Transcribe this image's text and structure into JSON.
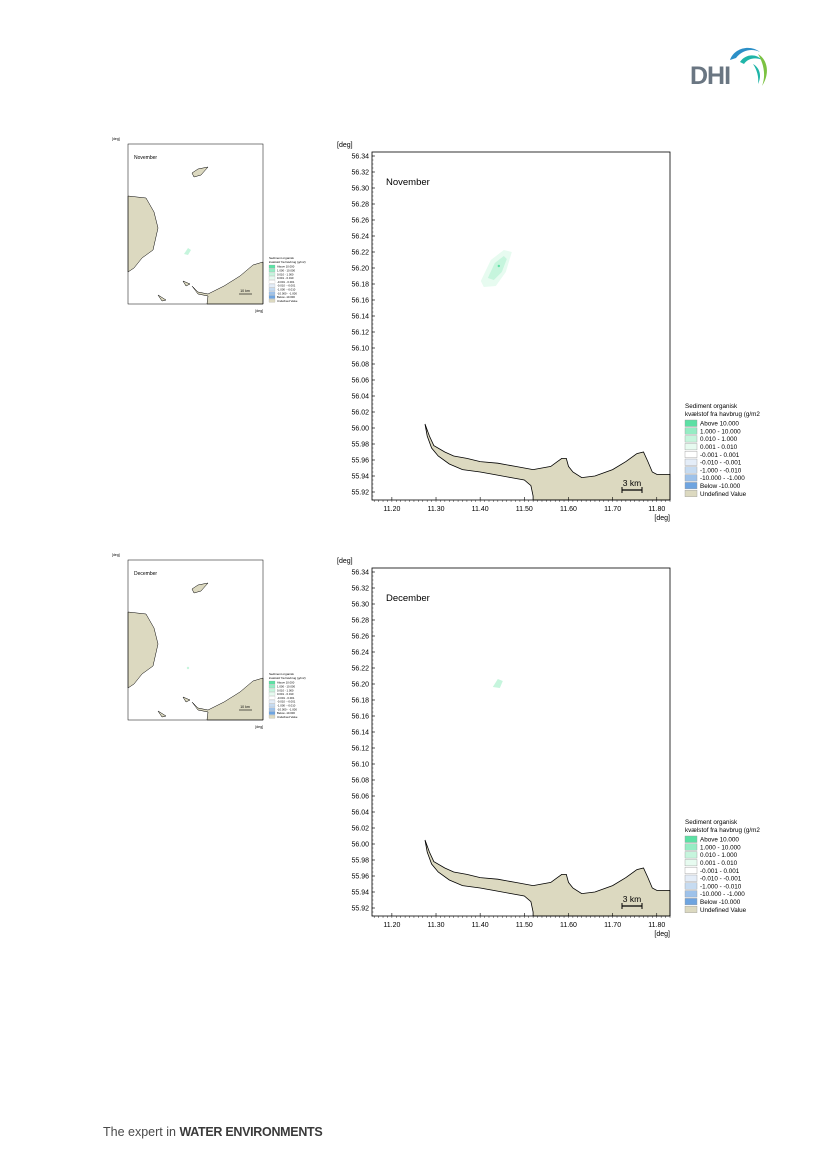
{
  "logo": {
    "text": "DHI",
    "colors": {
      "text": "#6a7682",
      "wave_blue": "#2c8fc7",
      "wave_teal": "#1fb5a8",
      "wave_green": "#7cc242"
    }
  },
  "footer": {
    "prefix": "The expert in ",
    "emphasis": "WATER ENVIRONMENTS"
  },
  "maps": [
    {
      "month": "November",
      "unit_label": "[deg]",
      "y_ticks": [
        "56.34",
        "56.32",
        "56.30",
        "56.28",
        "56.26",
        "56.24",
        "56.22",
        "56.20",
        "56.18",
        "56.16",
        "56.14",
        "56.12",
        "56.10",
        "56.08",
        "56.06",
        "56.04",
        "56.02",
        "56.00",
        "55.98",
        "55.96",
        "55.94",
        "55.92"
      ],
      "x_ticks": [
        "11.20",
        "11.30",
        "11.40",
        "11.50",
        "11.60",
        "11.70",
        "11.80"
      ],
      "x_unit": "[deg]",
      "scale_bar": "3 km",
      "plume": {
        "lon": 11.44,
        "lat": 56.2,
        "intensity": "medium"
      },
      "legend": {
        "title_line1": "Sediment organisk",
        "title_line2": "kvælstof fra havbrug (g/m2)",
        "entries": [
          {
            "label": "Above     10.000",
            "color": "#5ce0a4"
          },
          {
            "label": "  1.000 -  10.000",
            "color": "#96ecc4"
          },
          {
            "label": "  0.010 -    1.000",
            "color": "#c6f5dd"
          },
          {
            "label": "  0.001 -    0.010",
            "color": "#e7fbf0"
          },
          {
            "label": " -0.001 -    0.001",
            "color": "#ffffff"
          },
          {
            "label": " -0.010 -   -0.001",
            "color": "#e4edf8"
          },
          {
            "label": " -1.000 -   -0.010",
            "color": "#c6dbf1"
          },
          {
            "label": "-10.000 -   -1.000",
            "color": "#9ec2ea"
          },
          {
            "label": "Below    -10.000",
            "color": "#6ea4e0"
          },
          {
            "label": "Undefined Value",
            "color": "#dcd9c0"
          }
        ]
      }
    },
    {
      "month": "December",
      "unit_label": "[deg]",
      "y_ticks": [
        "56.34",
        "56.32",
        "56.30",
        "56.28",
        "56.26",
        "56.24",
        "56.22",
        "56.20",
        "56.18",
        "56.16",
        "56.14",
        "56.12",
        "56.10",
        "56.08",
        "56.06",
        "56.04",
        "56.02",
        "56.00",
        "55.98",
        "55.96",
        "55.94",
        "55.92"
      ],
      "x_ticks": [
        "11.20",
        "11.30",
        "11.40",
        "11.50",
        "11.60",
        "11.70",
        "11.80"
      ],
      "x_unit": "[deg]",
      "scale_bar": "3 km",
      "plume": {
        "lon": 11.44,
        "lat": 56.2,
        "intensity": "low"
      },
      "legend": {
        "title_line1": "Sediment organisk",
        "title_line2": "kvælstof fra havbrug (g/m2)",
        "entries": [
          {
            "label": "Above     10.000",
            "color": "#5ce0a4"
          },
          {
            "label": "  1.000 -  10.000",
            "color": "#96ecc4"
          },
          {
            "label": "  0.010 -    1.000",
            "color": "#c6f5dd"
          },
          {
            "label": "  0.001 -    0.010",
            "color": "#e7fbf0"
          },
          {
            "label": " -0.001 -    0.001",
            "color": "#ffffff"
          },
          {
            "label": " -0.010 -   -0.001",
            "color": "#e4edf8"
          },
          {
            "label": " -1.000 -   -0.010",
            "color": "#c6dbf1"
          },
          {
            "label": "-10.000 -   -1.000",
            "color": "#9ec2ea"
          },
          {
            "label": "Below    -10.000",
            "color": "#6ea4e0"
          },
          {
            "label": "Undefined Value",
            "color": "#dcd9c0"
          }
        ]
      }
    }
  ],
  "overviews": [
    {
      "month": "November",
      "scale_bar": "10 km",
      "unit": "[deg]"
    },
    {
      "month": "December",
      "scale_bar": "10 km",
      "unit": "[deg]"
    }
  ],
  "land_color": "#dcd9c0"
}
